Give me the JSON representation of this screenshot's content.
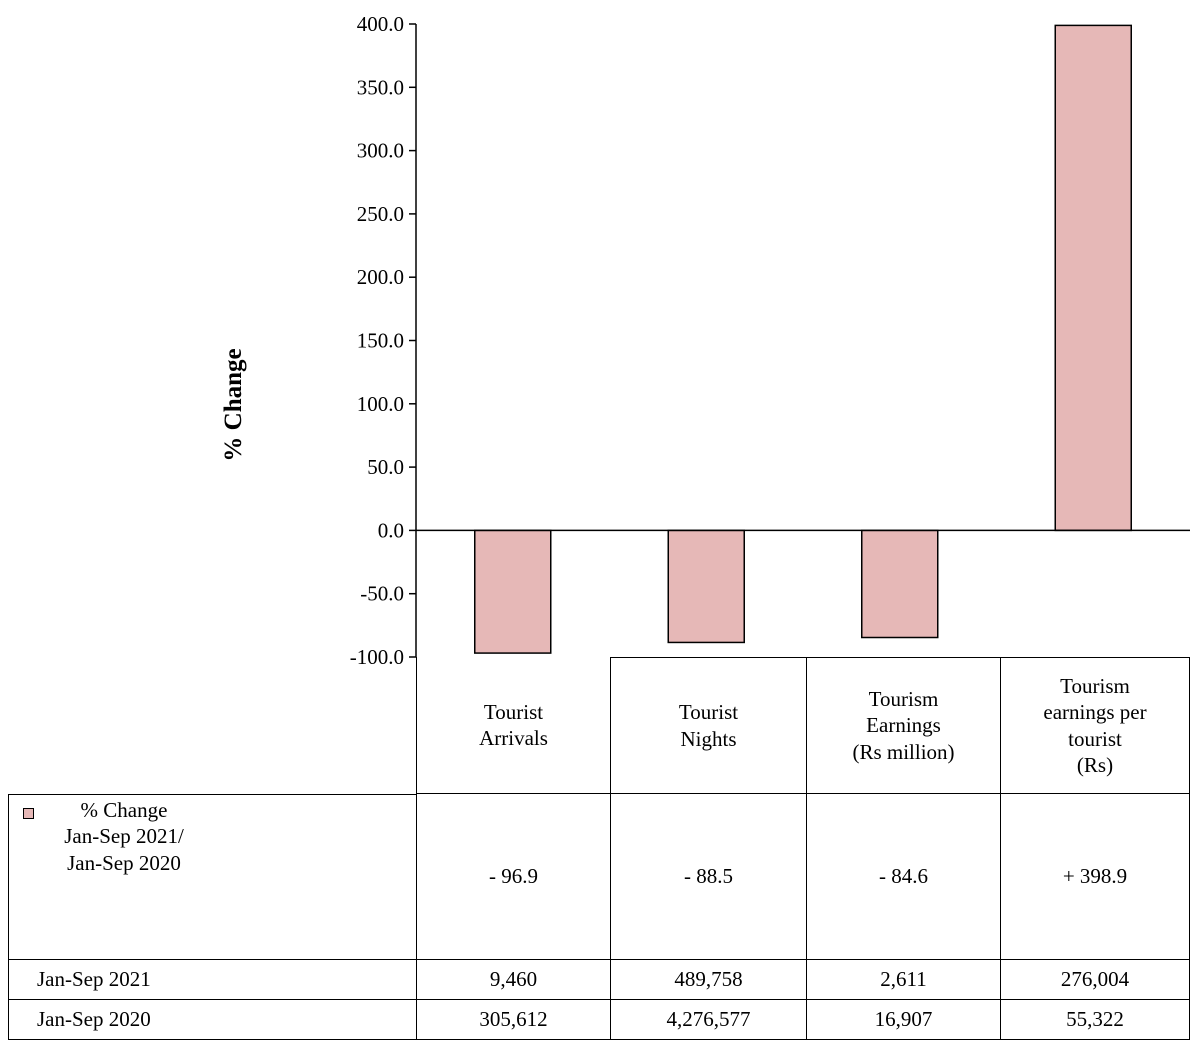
{
  "chart_data": {
    "type": "bar",
    "title": "",
    "xlabel": "",
    "ylabel": "% Change",
    "ylim": [
      -100,
      400
    ],
    "ytick_step": 50,
    "yticks": [
      "400.0",
      "350.0",
      "300.0",
      "250.0",
      "200.0",
      "150.0",
      "100.0",
      "50.0",
      "0.0",
      "-50.0",
      "-100.0"
    ],
    "grid": false,
    "bar_color": "#e6b8b7",
    "categories": [
      "Tourist\nArrivals",
      "Tourist\nNights",
      "Tourism\nEarnings\n(Rs million)",
      "Tourism\nearnings per\ntourist\n(Rs)"
    ],
    "series": [
      {
        "name": "% Change\nJan-Sep 2021/\nJan-Sep 2020",
        "values": [
          -96.9,
          -88.5,
          -84.6,
          398.9
        ],
        "labels": [
          "- 96.9",
          "- 88.5",
          "- 84.6",
          "+ 398.9"
        ]
      }
    ],
    "table_rows": [
      {
        "label": "Jan-Sep 2021",
        "values": [
          "9,460",
          "489,758",
          "2,611",
          "276,004"
        ]
      },
      {
        "label": "Jan-Sep 2020",
        "values": [
          "305,612",
          "4,276,577",
          "16,907",
          "55,322"
        ]
      }
    ]
  }
}
